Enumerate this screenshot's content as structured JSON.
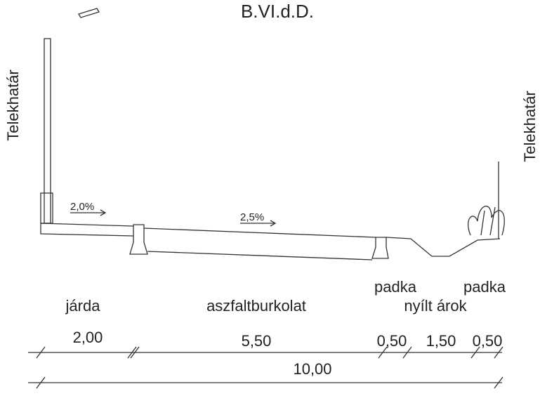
{
  "title": "B.VI.d.D.",
  "boundary_left": "Telekhatár",
  "boundary_right": "Telekhatár",
  "slopes": [
    "2,0%",
    "2,5%"
  ],
  "zones": {
    "sidewalk": "járda",
    "asphalt": "aszfaltburkolat",
    "shoulder_left": "padka",
    "ditch": "nyílt árok",
    "shoulder_right": "padka"
  },
  "dimensions": {
    "parts": [
      "2,00",
      "5,50",
      "0,50",
      "1,50",
      "0,50"
    ],
    "total": "10,00"
  }
}
